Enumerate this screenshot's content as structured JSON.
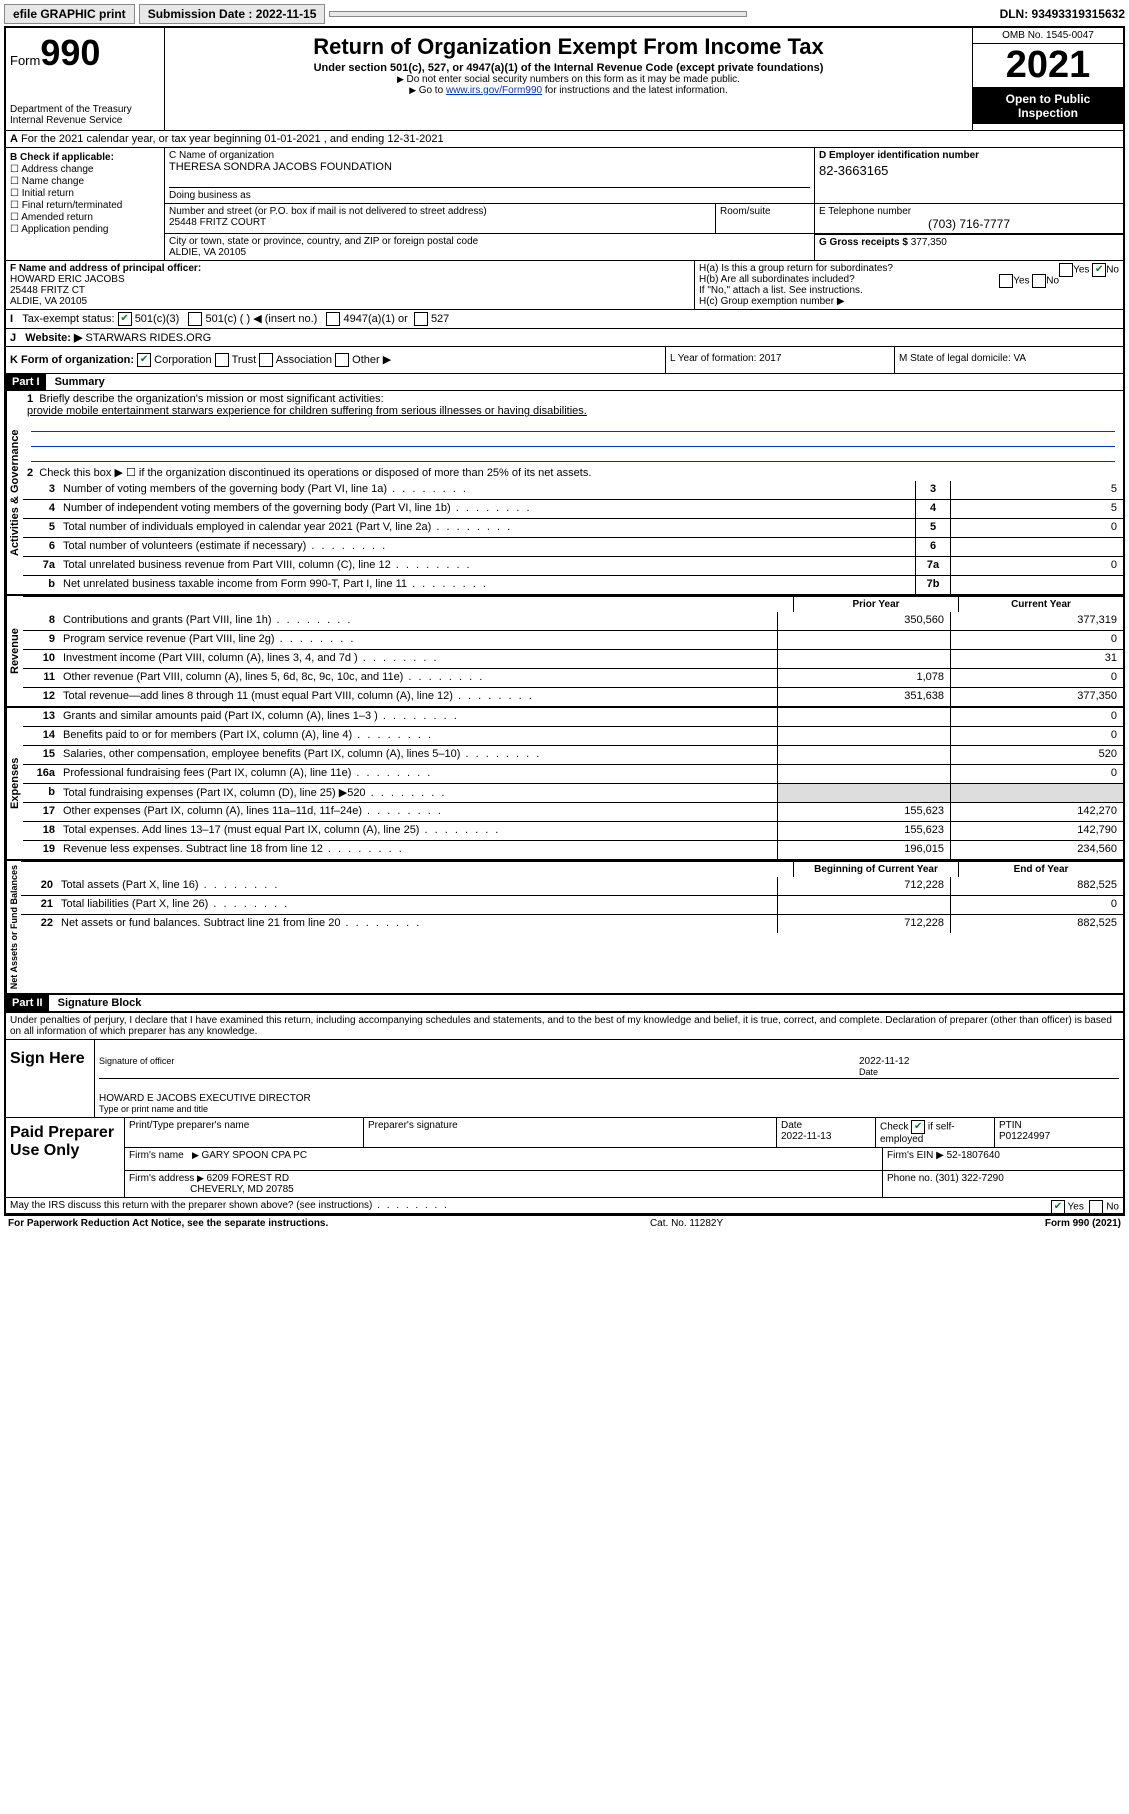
{
  "topbar": {
    "efile": "efile GRAPHIC print",
    "submission_label": "Submission Date : 2022-11-15",
    "dln": "DLN: 93493319315632"
  },
  "header": {
    "form_word": "Form",
    "form_num": "990",
    "dept": "Department of the Treasury",
    "irs": "Internal Revenue Service",
    "title": "Return of Organization Exempt From Income Tax",
    "sub": "Under section 501(c), 527, or 4947(a)(1) of the Internal Revenue Code (except private foundations)",
    "note1": "Do not enter social security numbers on this form as it may be made public.",
    "note2_pre": "Go to ",
    "note2_link": "www.irs.gov/Form990",
    "note2_post": " for instructions and the latest information.",
    "omb": "OMB No. 1545-0047",
    "year": "2021",
    "openpub": "Open to Public Inspection"
  },
  "row_a": "For the 2021 calendar year, or tax year beginning 01-01-2021   , and ending 12-31-2021",
  "b": {
    "label": "B Check if applicable:",
    "opts": [
      "Address change",
      "Name change",
      "Initial return",
      "Final return/terminated",
      "Amended return",
      "Application pending"
    ]
  },
  "c": {
    "name_label": "C Name of organization",
    "name": "THERESA SONDRA JACOBS FOUNDATION",
    "dba_label": "Doing business as",
    "addr_label": "Number and street (or P.O. box if mail is not delivered to street address)",
    "addr": "25448 FRITZ COURT",
    "room_label": "Room/suite",
    "city_label": "City or town, state or province, country, and ZIP or foreign postal code",
    "city": "ALDIE, VA  20105"
  },
  "d": {
    "label": "D Employer identification number",
    "val": "82-3663165"
  },
  "e": {
    "label": "E Telephone number",
    "val": "(703) 716-7777"
  },
  "g": {
    "label": "G Gross receipts $",
    "val": "377,350"
  },
  "f": {
    "label": "F Name and address of principal officer:",
    "name": "HOWARD ERIC JACOBS",
    "addr1": "25448 FRITZ CT",
    "addr2": "ALDIE, VA  20105"
  },
  "h": {
    "a": "H(a)  Is this a group return for subordinates?",
    "b": "H(b)  Are all subordinates included?",
    "b_note": "If \"No,\" attach a list. See instructions.",
    "c": "H(c)  Group exemption number ▶",
    "yes": "Yes",
    "no": "No"
  },
  "i": {
    "label": "Tax-exempt status:",
    "o1": "501(c)(3)",
    "o2": "501(c) (  ) ◀ (insert no.)",
    "o3": "4947(a)(1) or",
    "o4": "527"
  },
  "j": {
    "label": "Website: ▶",
    "val": "STARWARS RIDES.ORG"
  },
  "k": {
    "label": "K Form of organization:",
    "o1": "Corporation",
    "o2": "Trust",
    "o3": "Association",
    "o4": "Other ▶",
    "l": "L Year of formation: 2017",
    "m": "M State of legal domicile: VA"
  },
  "part1": {
    "header": "Part I",
    "title": "Summary",
    "l1_label": "Briefly describe the organization's mission or most significant activities:",
    "l1_text": "provide mobile entertainment starwars experience for children suffering from serious illnesses or having disabilities.",
    "l2": "Check this box ▶ ☐ if the organization discontinued its operations or disposed of more than 25% of its net assets.",
    "rows_gov": [
      {
        "n": "3",
        "t": "Number of voting members of the governing body (Part VI, line 1a)",
        "box": "3",
        "v": "5"
      },
      {
        "n": "4",
        "t": "Number of independent voting members of the governing body (Part VI, line 1b)",
        "box": "4",
        "v": "5"
      },
      {
        "n": "5",
        "t": "Total number of individuals employed in calendar year 2021 (Part V, line 2a)",
        "box": "5",
        "v": "0"
      },
      {
        "n": "6",
        "t": "Total number of volunteers (estimate if necessary)",
        "box": "6",
        "v": ""
      },
      {
        "n": "7a",
        "t": "Total unrelated business revenue from Part VIII, column (C), line 12",
        "box": "7a",
        "v": "0"
      },
      {
        "n": "b",
        "t": "Net unrelated business taxable income from Form 990-T, Part I, line 11",
        "box": "7b",
        "v": ""
      }
    ],
    "col_prior": "Prior Year",
    "col_current": "Current Year",
    "rows_rev": [
      {
        "n": "8",
        "t": "Contributions and grants (Part VIII, line 1h)",
        "p": "350,560",
        "c": "377,319"
      },
      {
        "n": "9",
        "t": "Program service revenue (Part VIII, line 2g)",
        "p": "",
        "c": "0"
      },
      {
        "n": "10",
        "t": "Investment income (Part VIII, column (A), lines 3, 4, and 7d )",
        "p": "",
        "c": "31"
      },
      {
        "n": "11",
        "t": "Other revenue (Part VIII, column (A), lines 5, 6d, 8c, 9c, 10c, and 11e)",
        "p": "1,078",
        "c": "0"
      },
      {
        "n": "12",
        "t": "Total revenue—add lines 8 through 11 (must equal Part VIII, column (A), line 12)",
        "p": "351,638",
        "c": "377,350"
      }
    ],
    "rows_exp": [
      {
        "n": "13",
        "t": "Grants and similar amounts paid (Part IX, column (A), lines 1–3 )",
        "p": "",
        "c": "0"
      },
      {
        "n": "14",
        "t": "Benefits paid to or for members (Part IX, column (A), line 4)",
        "p": "",
        "c": "0"
      },
      {
        "n": "15",
        "t": "Salaries, other compensation, employee benefits (Part IX, column (A), lines 5–10)",
        "p": "",
        "c": "520"
      },
      {
        "n": "16a",
        "t": "Professional fundraising fees (Part IX, column (A), line 11e)",
        "p": "",
        "c": "0"
      },
      {
        "n": "b",
        "t": "Total fundraising expenses (Part IX, column (D), line 25) ▶520",
        "p": "shade",
        "c": "shade"
      },
      {
        "n": "17",
        "t": "Other expenses (Part IX, column (A), lines 11a–11d, 11f–24e)",
        "p": "155,623",
        "c": "142,270"
      },
      {
        "n": "18",
        "t": "Total expenses. Add lines 13–17 (must equal Part IX, column (A), line 25)",
        "p": "155,623",
        "c": "142,790"
      },
      {
        "n": "19",
        "t": "Revenue less expenses. Subtract line 18 from line 12",
        "p": "196,015",
        "c": "234,560"
      }
    ],
    "col_begin": "Beginning of Current Year",
    "col_end": "End of Year",
    "rows_net": [
      {
        "n": "20",
        "t": "Total assets (Part X, line 16)",
        "p": "712,228",
        "c": "882,525"
      },
      {
        "n": "21",
        "t": "Total liabilities (Part X, line 26)",
        "p": "",
        "c": "0"
      },
      {
        "n": "22",
        "t": "Net assets or fund balances. Subtract line 21 from line 20",
        "p": "712,228",
        "c": "882,525"
      }
    ],
    "vlab_gov": "Activities & Governance",
    "vlab_rev": "Revenue",
    "vlab_exp": "Expenses",
    "vlab_net": "Net Assets or Fund Balances"
  },
  "part2": {
    "header": "Part II",
    "title": "Signature Block",
    "decl": "Under penalties of perjury, I declare that I have examined this return, including accompanying schedules and statements, and to the best of my knowledge and belief, it is true, correct, and complete. Declaration of preparer (other than officer) is based on all information of which preparer has any knowledge.",
    "sign_here": "Sign Here",
    "sig_officer": "Signature of officer",
    "sig_date": "Date",
    "sig_date_val": "2022-11-12",
    "sig_name": "HOWARD E JACOBS  EXECUTIVE DIRECTOR",
    "sig_name_lab": "Type or print name and title",
    "paid": "Paid Preparer Use Only",
    "p_name_lab": "Print/Type preparer's name",
    "p_sig_lab": "Preparer's signature",
    "p_date_lab": "Date",
    "p_date": "2022-11-13",
    "p_check_lab": "Check",
    "p_check_if": "if self-employed",
    "p_ptin_lab": "PTIN",
    "p_ptin": "P01224997",
    "firm_name_lab": "Firm's name",
    "firm_name": "GARY SPOON CPA PC",
    "firm_ein_lab": "Firm's EIN ▶",
    "firm_ein": "52-1807640",
    "firm_addr_lab": "Firm's address",
    "firm_addr1": "6209 FOREST RD",
    "firm_addr2": "CHEVERLY, MD  20785",
    "phone_lab": "Phone no.",
    "phone": "(301) 322-7290",
    "discuss": "May the IRS discuss this return with the preparer shown above? (see instructions)",
    "yes": "Yes",
    "no": "No"
  },
  "footer": {
    "left": "For Paperwork Reduction Act Notice, see the separate instructions.",
    "mid": "Cat. No. 11282Y",
    "right": "Form 990 (2021)"
  }
}
